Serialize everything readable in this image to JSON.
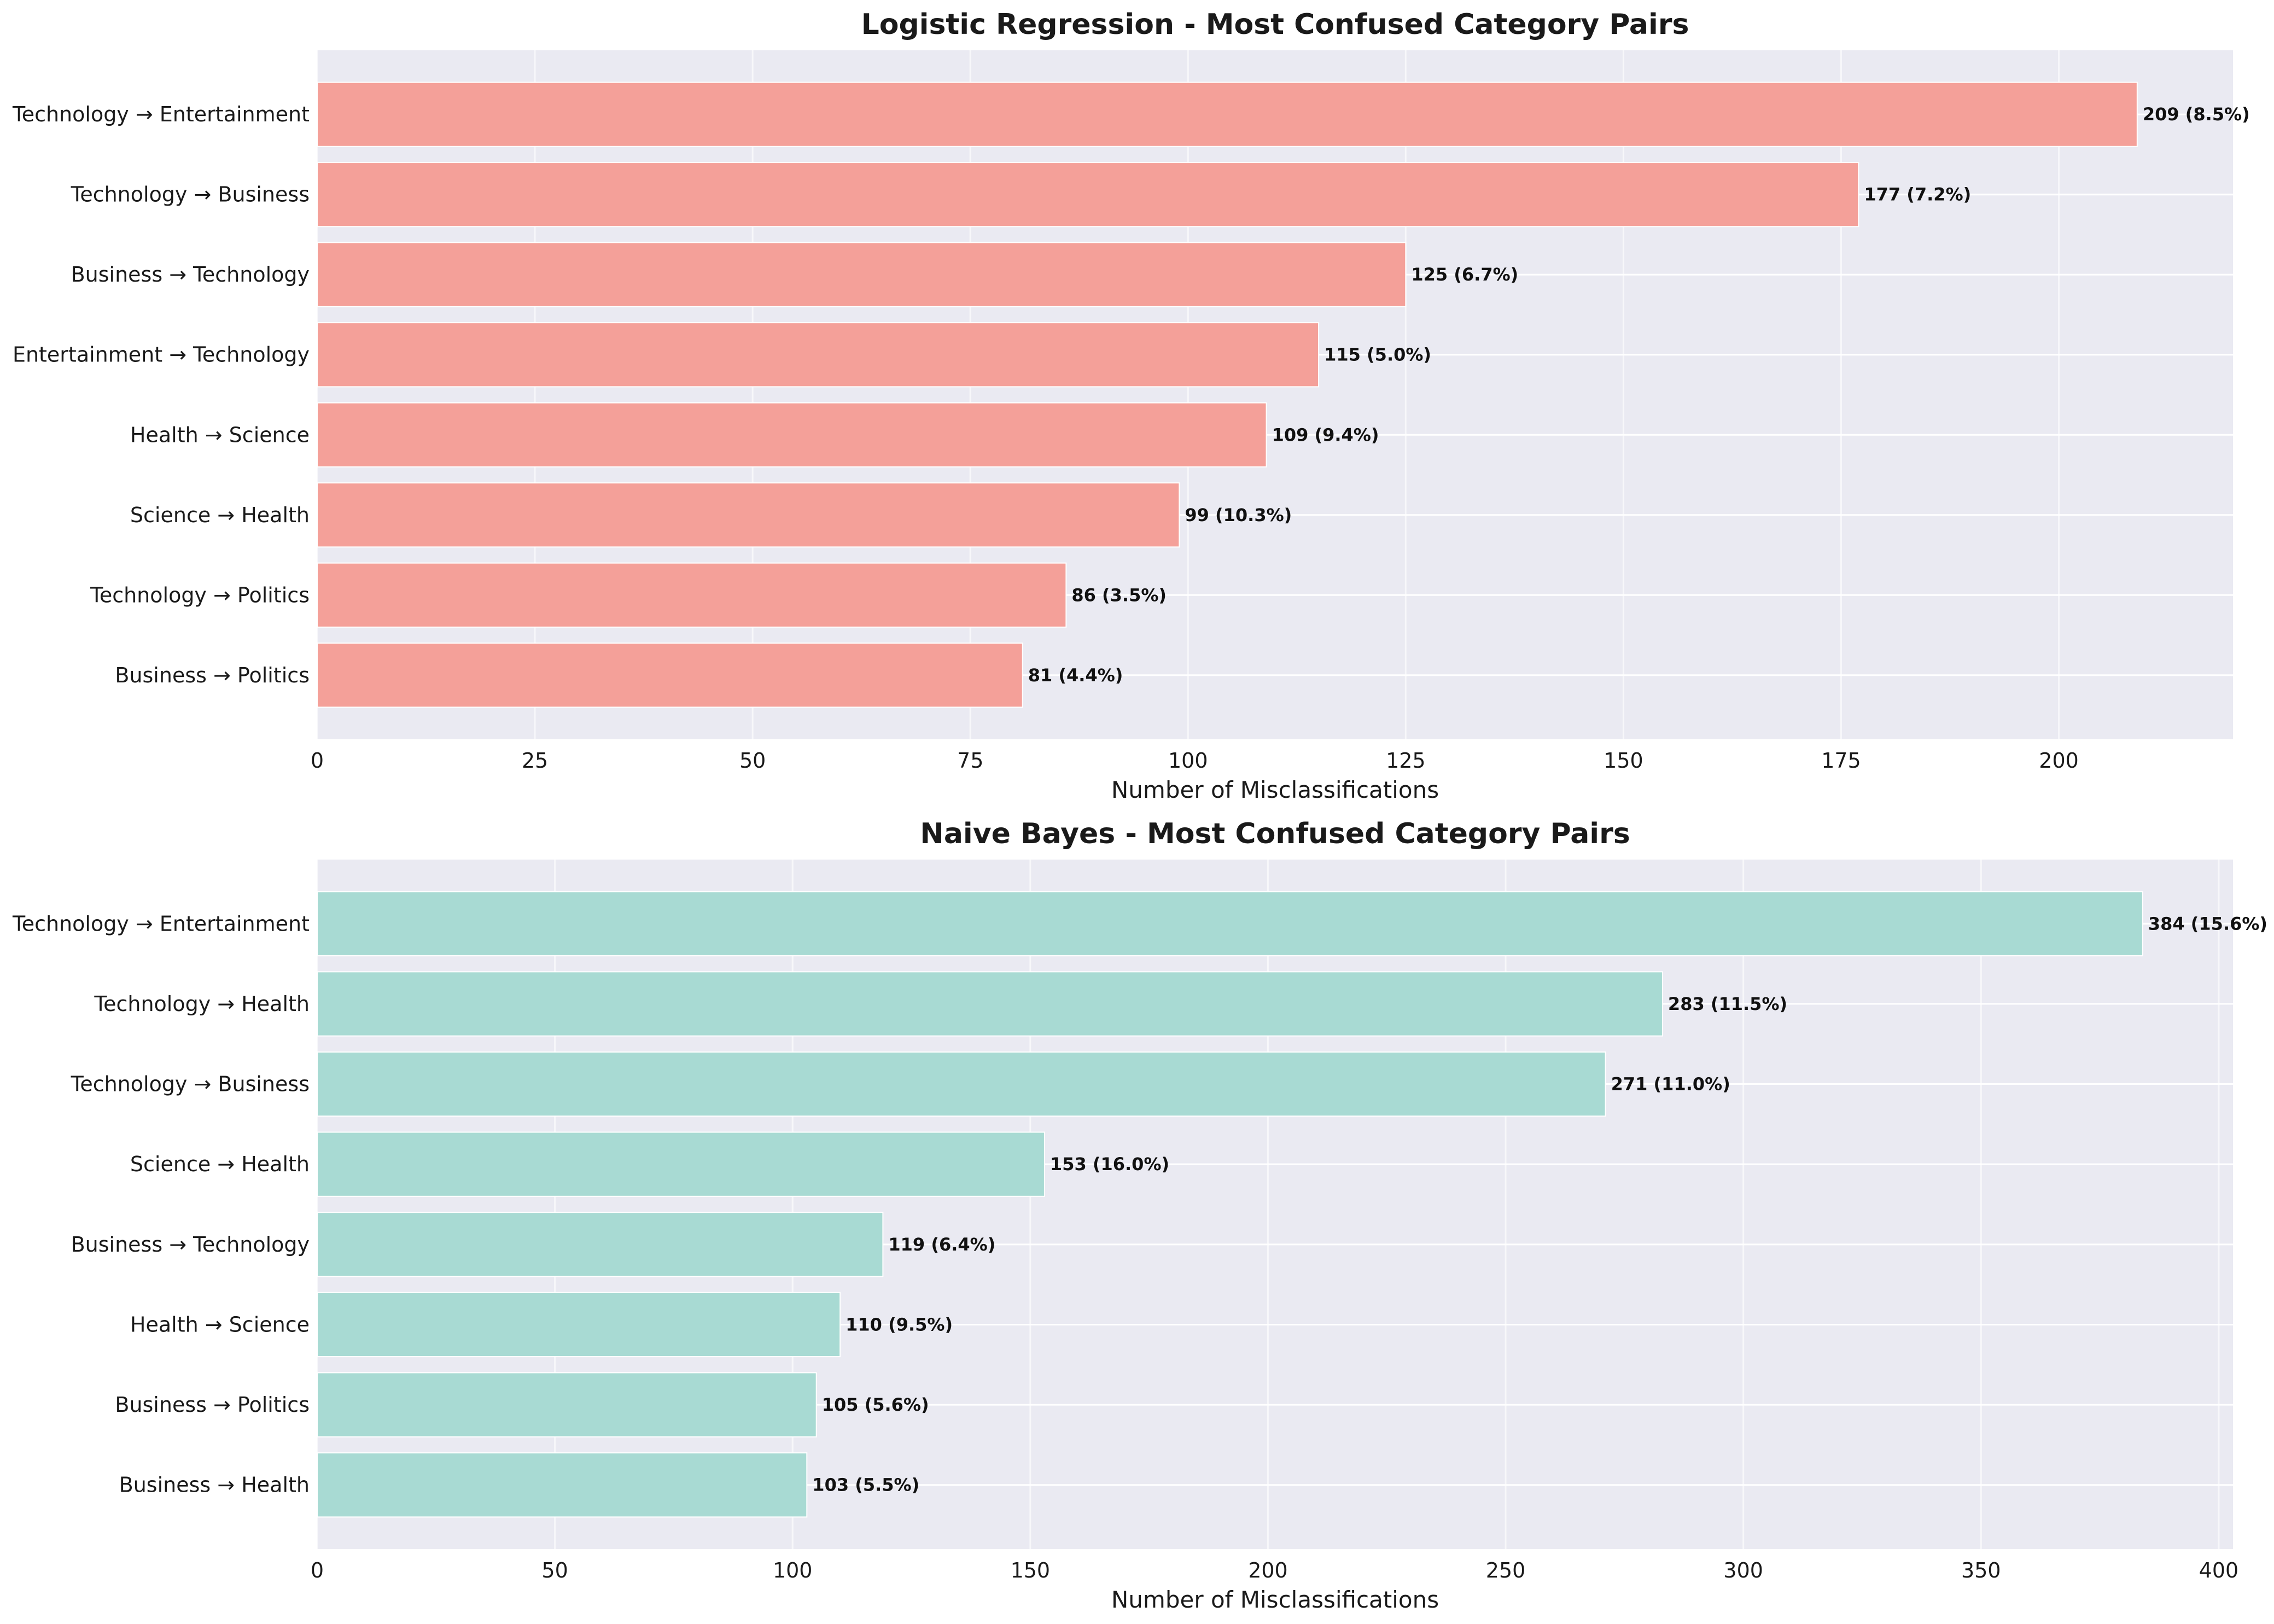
{
  "chart_data": [
    {
      "type": "bar",
      "orientation": "horizontal",
      "title": "Logistic Regression - Most Confused Category Pairs",
      "xlabel": "Number of Misclassifications",
      "ylabel": "",
      "xlim": [
        0,
        220
      ],
      "xticks": [
        0,
        25,
        50,
        75,
        100,
        125,
        150,
        175,
        200
      ],
      "grid": true,
      "bar_color": "#f4a099",
      "categories": [
        "Technology → Entertainment",
        "Technology → Business",
        "Business → Technology",
        "Entertainment → Technology",
        "Health → Science",
        "Science → Health",
        "Technology → Politics",
        "Business → Politics"
      ],
      "values": [
        209,
        177,
        125,
        115,
        109,
        99,
        86,
        81
      ],
      "data_labels": [
        "209 (8.5%)",
        "177 (7.2%)",
        "125 (6.7%)",
        "115 (5.0%)",
        "109 (9.4%)",
        "99 (10.3%)",
        "86 (3.5%)",
        "81 (4.4%)"
      ]
    },
    {
      "type": "bar",
      "orientation": "horizontal",
      "title": "Naive Bayes - Most Confused Category Pairs",
      "xlabel": "Number of Misclassifications",
      "ylabel": "",
      "xlim": [
        0,
        403
      ],
      "xticks": [
        0,
        50,
        100,
        150,
        200,
        250,
        300,
        350,
        400
      ],
      "grid": true,
      "bar_color": "#a8dad3",
      "categories": [
        "Technology → Entertainment",
        "Technology → Health",
        "Technology → Business",
        "Science → Health",
        "Business → Technology",
        "Health → Science",
        "Business → Politics",
        "Business → Health"
      ],
      "values": [
        384,
        283,
        271,
        153,
        119,
        110,
        105,
        103
      ],
      "data_labels": [
        "384 (15.6%)",
        "283 (11.5%)",
        "271 (11.0%)",
        "153 (16.0%)",
        "119 (6.4%)",
        "110 (9.5%)",
        "105 (5.6%)",
        "103 (5.5%)"
      ]
    }
  ]
}
